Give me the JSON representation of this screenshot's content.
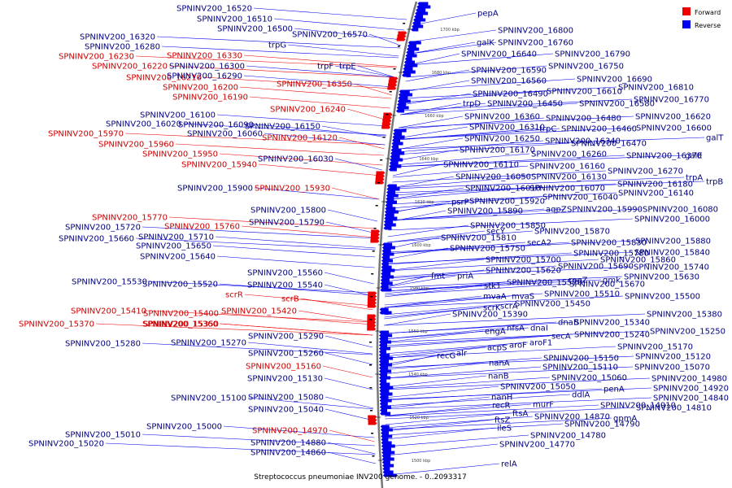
{
  "caption": "Streptococcus pneumoniae INV200 genome. - 0..2093317",
  "legend": [
    {
      "label": "Forward",
      "color": "#ee0000"
    },
    {
      "label": "Reverse",
      "color": "#0000ee"
    }
  ],
  "colors": {
    "forward": "#ee0000",
    "reverse": "#0000ee",
    "backbone": "#808080",
    "text": "#000080",
    "text_fwd": "#cc0000"
  },
  "ticks": [
    "1700 kbp",
    "1680 kbp",
    "1660 kbp",
    "1640 kbp",
    "1620 kbp",
    "1600 kbp",
    "1580 kbp",
    "1560 kbp",
    "1540 kbp",
    "1520 kbp",
    "1500 kbp"
  ],
  "labels": {
    "left": [
      {
        "t": "SPNINV200_16520",
        "s": "r"
      },
      {
        "t": "SPNINV200_16510",
        "s": "r"
      },
      {
        "t": "SPNINV200_16500",
        "s": "r"
      },
      {
        "t": "SPNINV200_16570",
        "s": "r"
      },
      {
        "t": "SPNINV200_16320",
        "s": "r"
      },
      {
        "t": "SPNINV200_16280",
        "s": "r"
      },
      {
        "t": "trpG",
        "s": "r"
      },
      {
        "t": "SPNINV200_16230",
        "s": "f"
      },
      {
        "t": "SPNINV200_16330",
        "s": "f"
      },
      {
        "t": "SPNINV200_16220",
        "s": "f"
      },
      {
        "t": "SPNINV200_16300",
        "s": "r"
      },
      {
        "t": "trpF",
        "s": "r"
      },
      {
        "t": "trpE",
        "s": "r"
      },
      {
        "t": "SPNINV200_16210",
        "s": "f"
      },
      {
        "t": "SPNINV200_16290",
        "s": "r"
      },
      {
        "t": "SPNINV200_16200",
        "s": "f"
      },
      {
        "t": "SPNINV200_16350",
        "s": "f"
      },
      {
        "t": "SPNINV200_16190",
        "s": "f"
      },
      {
        "t": "SPNINV200_16240",
        "s": "f"
      },
      {
        "t": "SPNINV200_16100",
        "s": "r"
      },
      {
        "t": "SPNINV200_16020",
        "s": "r"
      },
      {
        "t": "SPNINV200_16090",
        "s": "r"
      },
      {
        "t": "SPNINV200_16150",
        "s": "r"
      },
      {
        "t": "SPNINV200_15970",
        "s": "f"
      },
      {
        "t": "SPNINV200_16060",
        "s": "r"
      },
      {
        "t": "SPNINV200_16120",
        "s": "f"
      },
      {
        "t": "SPNINV200_15960",
        "s": "f"
      },
      {
        "t": "SPNINV200_15950",
        "s": "f"
      },
      {
        "t": "SPNINV200_16030",
        "s": "r"
      },
      {
        "t": "SPNINV200_15940",
        "s": "f"
      },
      {
        "t": "SPNINV200_15900",
        "s": "r"
      },
      {
        "t": "SPNINV200_15930",
        "s": "f"
      },
      {
        "t": "SPNINV200_15800",
        "s": "r"
      },
      {
        "t": "SPNINV200_15770",
        "s": "f"
      },
      {
        "t": "SPNINV200_15790",
        "s": "r"
      },
      {
        "t": "SPNINV200_15720",
        "s": "r"
      },
      {
        "t": "SPNINV200_15760",
        "s": "f"
      },
      {
        "t": "SPNINV200_15710",
        "s": "r"
      },
      {
        "t": "SPNINV200_15660",
        "s": "r"
      },
      {
        "t": "SPNINV200_15650",
        "s": "r"
      },
      {
        "t": "SPNINV200_15640",
        "s": "r"
      },
      {
        "t": "SPNINV200_15560",
        "s": "r"
      },
      {
        "t": "SPNINV200_15530",
        "s": "r"
      },
      {
        "t": "SPNINV200_15520",
        "s": "r"
      },
      {
        "t": "SPNINV200_15540",
        "s": "r"
      },
      {
        "t": "scrR",
        "s": "f"
      },
      {
        "t": "scrB",
        "s": "f"
      },
      {
        "t": "SPNINV200_15410",
        "s": "f"
      },
      {
        "t": "SPNINV200_15420",
        "s": "f"
      },
      {
        "t": "SPNINV200_15400",
        "s": "f"
      },
      {
        "t": "SPNINV200_15370",
        "s": "f"
      },
      {
        "t": "SPNINV200_15360",
        "s": "f"
      },
      {
        "t": "SPNINV200_15350",
        "s": "f"
      },
      {
        "t": "SPNINV200_15290",
        "s": "r"
      },
      {
        "t": "SPNINV200_15280",
        "s": "r"
      },
      {
        "t": "SPNINV200_15270",
        "s": "r"
      },
      {
        "t": "SPNINV200_15260",
        "s": "r"
      },
      {
        "t": "SPNINV200_15160",
        "s": "f"
      },
      {
        "t": "SPNINV200_15130",
        "s": "r"
      },
      {
        "t": "SPNINV200_15100",
        "s": "r"
      },
      {
        "t": "SPNINV200_15080",
        "s": "r"
      },
      {
        "t": "SPNINV200_15040",
        "s": "r"
      },
      {
        "t": "SPNINV200_15000",
        "s": "r"
      },
      {
        "t": "SPNINV200_15010",
        "s": "r"
      },
      {
        "t": "SPNINV200_14970",
        "s": "f"
      },
      {
        "t": "SPNINV200_15020",
        "s": "r"
      },
      {
        "t": "SPNINV200_14880",
        "s": "r"
      },
      {
        "t": "SPNINV200_14860",
        "s": "r"
      }
    ],
    "right": [
      {
        "t": "pepA",
        "s": "r"
      },
      {
        "t": "SPNINV200_16800",
        "s": "r"
      },
      {
        "t": "galK",
        "s": "r"
      },
      {
        "t": "SPNINV200_16760",
        "s": "r"
      },
      {
        "t": "SPNINV200_16640",
        "s": "r"
      },
      {
        "t": "SPNINV200_16790",
        "s": "r"
      },
      {
        "t": "SPNINV200_16590",
        "s": "r"
      },
      {
        "t": "SPNINV200_16750",
        "s": "r"
      },
      {
        "t": "SPNINV200_16560",
        "s": "r"
      },
      {
        "t": "SPNINV200_16690",
        "s": "r"
      },
      {
        "t": "SPNINV200_16810",
        "s": "r"
      },
      {
        "t": "SPNINV200_16490",
        "s": "r"
      },
      {
        "t": "SPNINV200_16610",
        "s": "r"
      },
      {
        "t": "trpD",
        "s": "r"
      },
      {
        "t": "SPNINV200_16450",
        "s": "r"
      },
      {
        "t": "SPNINV200_16580",
        "s": "r"
      },
      {
        "t": "SPNINV200_16770",
        "s": "r"
      },
      {
        "t": "SPNINV200_16360",
        "s": "r"
      },
      {
        "t": "SPNINV200_16480",
        "s": "r"
      },
      {
        "t": "SPNINV200_16620",
        "s": "r"
      },
      {
        "t": "SPNINV200_16310",
        "s": "r"
      },
      {
        "t": "trpC",
        "s": "r"
      },
      {
        "t": "SPNINV200_16460",
        "s": "r"
      },
      {
        "t": "SPNINV200_16600",
        "s": "r"
      },
      {
        "t": "galT",
        "s": "r"
      },
      {
        "t": "SPNINV200_16250",
        "s": "r"
      },
      {
        "t": "SPNINV200_16340",
        "s": "r"
      },
      {
        "t": "SPNINV200_16470",
        "s": "r"
      },
      {
        "t": "SPNINV200_16170",
        "s": "r"
      },
      {
        "t": "SPNINV200_16260",
        "s": "r"
      },
      {
        "t": "SPNINV200_16370",
        "s": "r"
      },
      {
        "t": "galE",
        "s": "r"
      },
      {
        "t": "SPNINV200_16110",
        "s": "r"
      },
      {
        "t": "SPNINV200_16160",
        "s": "r"
      },
      {
        "t": "SPNINV200_16270",
        "s": "r"
      },
      {
        "t": "SPNINV200_16050",
        "s": "r"
      },
      {
        "t": "SPNINV200_16130",
        "s": "r"
      },
      {
        "t": "trpA",
        "s": "r"
      },
      {
        "t": "trpB",
        "s": "r"
      },
      {
        "t": "SPNINV200_16180",
        "s": "r"
      },
      {
        "t": "SPNINV200_16010",
        "s": "r"
      },
      {
        "t": "SPNINV200_16070",
        "s": "r"
      },
      {
        "t": "SPNINV200_16140",
        "s": "r"
      },
      {
        "t": "psrP",
        "s": "r"
      },
      {
        "t": "SPNINV200_15920",
        "s": "r"
      },
      {
        "t": "SPNINV200_16040",
        "s": "r"
      },
      {
        "t": "SPNINV200_15890",
        "s": "r"
      },
      {
        "t": "aqpZ",
        "s": "r"
      },
      {
        "t": "SPNINV200_15990",
        "s": "r"
      },
      {
        "t": "SPNINV200_16080",
        "s": "r"
      },
      {
        "t": "SPNINV200_16000",
        "s": "r"
      },
      {
        "t": "SPNINV200_15850",
        "s": "r"
      },
      {
        "t": "secY",
        "s": "r"
      },
      {
        "t": "SPNINV200_15870",
        "s": "r"
      },
      {
        "t": "SPNINV200_15810",
        "s": "r"
      },
      {
        "t": "secA2",
        "s": "r"
      },
      {
        "t": "SPNINV200_15830",
        "s": "r"
      },
      {
        "t": "SPNINV200_15880",
        "s": "r"
      },
      {
        "t": "SPNINV200_15750",
        "s": "r"
      },
      {
        "t": "SPNINV200_15780",
        "s": "r"
      },
      {
        "t": "SPNINV200_15840",
        "s": "r"
      },
      {
        "t": "SPNINV200_15700",
        "s": "r"
      },
      {
        "t": "SPNINV200_15860",
        "s": "r"
      },
      {
        "t": "SPNINV200_15620",
        "s": "r"
      },
      {
        "t": "SPNINV200_15690",
        "s": "r"
      },
      {
        "t": "SPNINV200_15740",
        "s": "r"
      },
      {
        "t": "fmt",
        "s": "r"
      },
      {
        "t": "priA",
        "s": "r"
      },
      {
        "t": "rpoZ",
        "s": "r"
      },
      {
        "t": "gmk",
        "s": "r"
      },
      {
        "t": "SPNINV200_15630",
        "s": "r"
      },
      {
        "t": "stk1",
        "s": "r"
      },
      {
        "t": "SPNINV200_15570",
        "s": "r"
      },
      {
        "t": "SPNINV200_15670",
        "s": "r"
      },
      {
        "t": "mvaA",
        "s": "r"
      },
      {
        "t": "mvaS",
        "s": "r"
      },
      {
        "t": "SPNINV200_15510",
        "s": "r"
      },
      {
        "t": "SPNINV200_15500",
        "s": "r"
      },
      {
        "t": "scrK",
        "s": "r"
      },
      {
        "t": "scrA",
        "s": "r"
      },
      {
        "t": "SPNINV200_15450",
        "s": "r"
      },
      {
        "t": "SPNINV200_15390",
        "s": "r"
      },
      {
        "t": "SPNINV200_15380",
        "s": "r"
      },
      {
        "t": "dnaB",
        "s": "r"
      },
      {
        "t": "SPNINV200_15340",
        "s": "r"
      },
      {
        "t": "engA",
        "s": "r"
      },
      {
        "t": "nfsA",
        "s": "r"
      },
      {
        "t": "dnaI",
        "s": "r"
      },
      {
        "t": "secA",
        "s": "r"
      },
      {
        "t": "SPNINV200_15240",
        "s": "r"
      },
      {
        "t": "SPNINV200_15250",
        "s": "r"
      },
      {
        "t": "acpS",
        "s": "r"
      },
      {
        "t": "aroF",
        "s": "r"
      },
      {
        "t": "aroF1",
        "s": "r"
      },
      {
        "t": "recG",
        "s": "r"
      },
      {
        "t": "alr",
        "s": "r"
      },
      {
        "t": "SPNINV200_15170",
        "s": "r"
      },
      {
        "t": "SPNINV200_15150",
        "s": "r"
      },
      {
        "t": "SPNINV200_15120",
        "s": "r"
      },
      {
        "t": "nanA",
        "s": "r"
      },
      {
        "t": "SPNINV200_15110",
        "s": "r"
      },
      {
        "t": "SPNINV200_15070",
        "s": "r"
      },
      {
        "t": "nanB",
        "s": "r"
      },
      {
        "t": "SPNINV200_15060",
        "s": "r"
      },
      {
        "t": "SPNINV200_14980",
        "s": "r"
      },
      {
        "t": "SPNINV200_15050",
        "s": "r"
      },
      {
        "t": "penA",
        "s": "r"
      },
      {
        "t": "SPNINV200_14920",
        "s": "r"
      },
      {
        "t": "nanH",
        "s": "r"
      },
      {
        "t": "ddlA",
        "s": "r"
      },
      {
        "t": "SPNINV200_14840",
        "s": "r"
      },
      {
        "t": "recR",
        "s": "r"
      },
      {
        "t": "murF",
        "s": "r"
      },
      {
        "t": "SPNINV200_14910",
        "s": "r"
      },
      {
        "t": "SPNINV200_14810",
        "s": "r"
      },
      {
        "t": "ftsA",
        "s": "r"
      },
      {
        "t": "SPNINV200_14870",
        "s": "r"
      },
      {
        "t": "gpmA",
        "s": "r"
      },
      {
        "t": "ftsZ",
        "s": "r"
      },
      {
        "t": "SPNINV200_14790",
        "s": "r"
      },
      {
        "t": "ileS",
        "s": "r"
      },
      {
        "t": "SPNINV200_14780",
        "s": "r"
      },
      {
        "t": "SPNINV200_14770",
        "s": "r"
      },
      {
        "t": "relA",
        "s": "r"
      }
    ]
  }
}
